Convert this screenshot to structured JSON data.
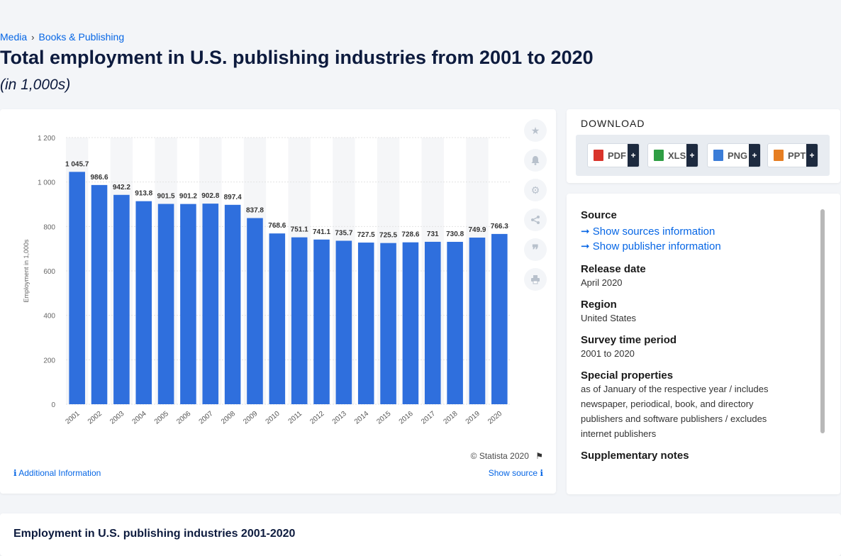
{
  "breadcrumb": [
    "Media",
    "Books & Publishing"
  ],
  "page": {
    "title": "Total employment in U.S. publishing industries from 2001 to 2020",
    "subtitle": "(in 1,000s)",
    "bottom_title": "Employment in U.S. publishing industries 2001-2020"
  },
  "chart_data": {
    "type": "bar",
    "categories": [
      "2001",
      "2002",
      "2003",
      "2004",
      "2005",
      "2006",
      "2007",
      "2008",
      "2009",
      "2010",
      "2011",
      "2012",
      "2013",
      "2014",
      "2015",
      "2016",
      "2017",
      "2018",
      "2019",
      "2020"
    ],
    "values": [
      1045.7,
      986.6,
      942.2,
      913.8,
      901.5,
      901.2,
      902.8,
      897.4,
      837.8,
      768.6,
      751.1,
      741.1,
      735.7,
      727.5,
      725.5,
      728.6,
      731,
      730.8,
      749.9,
      766.3
    ],
    "value_labels": [
      "1 045.7",
      "986.6",
      "942.2",
      "913.8",
      "901.5",
      "901.2",
      "902.8",
      "897.4",
      "837.8",
      "768.6",
      "751.1",
      "741.1",
      "735.7",
      "727.5",
      "725.5",
      "728.6",
      "731",
      "730.8",
      "749.9",
      "766.3"
    ],
    "ylabel": "Employment in 1,000s",
    "xlabel": "",
    "ylim": [
      0,
      1200
    ],
    "yticks": [
      0,
      200,
      400,
      600,
      800,
      1000,
      1200
    ],
    "ytick_labels": [
      "0",
      "200",
      "400",
      "600",
      "800",
      "1 000",
      "1 200"
    ],
    "bar_color": "#2f6fdd",
    "grid": true
  },
  "chart_footer": {
    "copyright": "© Statista 2020",
    "additional_info": "Additional Information",
    "show_source": "Show source"
  },
  "side_buttons": [
    "star-icon",
    "bell-icon",
    "gear-icon",
    "share-icon",
    "quote-icon",
    "print-icon"
  ],
  "download": {
    "heading": "DOWNLOAD",
    "buttons": [
      {
        "label": "PDF",
        "color": "#d9342b"
      },
      {
        "label": "XLS",
        "color": "#2f9e44"
      },
      {
        "label": "PNG",
        "color": "#3b7dd8"
      },
      {
        "label": "PPT",
        "color": "#e67e22"
      }
    ],
    "plus": "+"
  },
  "info": {
    "source_label": "Source",
    "show_sources": "Show sources information",
    "show_publisher": "Show publisher information",
    "release_label": "Release date",
    "release_value": "April 2020",
    "region_label": "Region",
    "region_value": "United States",
    "survey_label": "Survey time period",
    "survey_value": "2001 to 2020",
    "special_label": "Special properties",
    "special_value": "as of January of the respective year / includes newspaper, periodical, book, and directory publishers and software publishers / excludes internet publishers",
    "supplementary_label": "Supplementary notes"
  }
}
